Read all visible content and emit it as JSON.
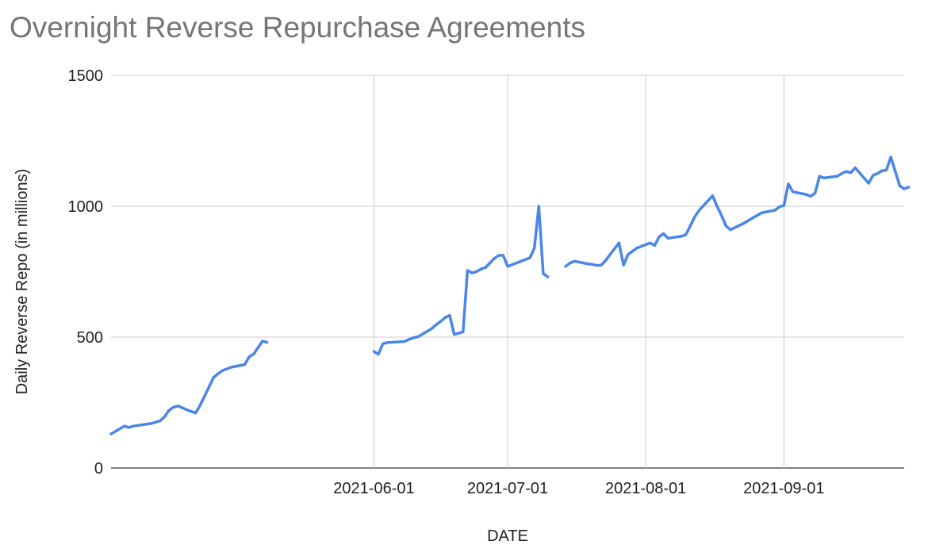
{
  "chart_data": {
    "type": "line",
    "title": "Overnight Reverse Repurchase Agreements",
    "xlabel": "DATE",
    "ylabel": "Daily Reverse Repo (in millions)",
    "ylim": [
      0,
      1500
    ],
    "y_ticks": [
      0,
      500,
      1000,
      1500
    ],
    "x_ticks": [
      "2021-06-01",
      "2021-07-01",
      "2021-08-01",
      "2021-09-01"
    ],
    "xlim": [
      "2021-04-03",
      "2021-09-28"
    ],
    "grid": true,
    "line_color": "#4a86e8",
    "series": [
      {
        "segments": [
          [
            [
              "2021-04-03",
              130
            ],
            [
              "2021-04-05",
              150
            ],
            [
              "2021-04-06",
              160
            ],
            [
              "2021-04-07",
              155
            ],
            [
              "2021-04-08",
              160
            ],
            [
              "2021-04-12",
              170
            ],
            [
              "2021-04-13",
              175
            ],
            [
              "2021-04-14",
              180
            ],
            [
              "2021-04-15",
              195
            ],
            [
              "2021-04-16",
              220
            ],
            [
              "2021-04-17",
              232
            ],
            [
              "2021-04-18",
              237
            ],
            [
              "2021-04-19",
              230
            ],
            [
              "2021-04-20",
              222
            ],
            [
              "2021-04-22",
              210
            ],
            [
              "2021-04-23",
              240
            ],
            [
              "2021-04-26",
              345
            ],
            [
              "2021-04-27",
              360
            ],
            [
              "2021-04-28",
              372
            ],
            [
              "2021-04-30",
              385
            ],
            [
              "2021-05-03",
              395
            ],
            [
              "2021-05-04",
              425
            ],
            [
              "2021-05-05",
              435
            ],
            [
              "2021-05-06",
              460
            ],
            [
              "2021-05-07",
              485
            ],
            [
              "2021-05-08",
              480
            ]
          ],
          [
            [
              "2021-06-01",
              445
            ],
            [
              "2021-06-02",
              435
            ],
            [
              "2021-06-03",
              475
            ],
            [
              "2021-06-04",
              479
            ],
            [
              "2021-06-07",
              482
            ],
            [
              "2021-06-08",
              484
            ],
            [
              "2021-06-09",
              492
            ],
            [
              "2021-06-10",
              498
            ],
            [
              "2021-06-11",
              502
            ],
            [
              "2021-06-14",
              533
            ],
            [
              "2021-06-15",
              548
            ],
            [
              "2021-06-16",
              560
            ],
            [
              "2021-06-17",
              575
            ],
            [
              "2021-06-18",
              583
            ],
            [
              "2021-06-19",
              510
            ],
            [
              "2021-06-21",
              520
            ],
            [
              "2021-06-22",
              755
            ],
            [
              "2021-06-23",
              745
            ],
            [
              "2021-06-24",
              750
            ],
            [
              "2021-06-25",
              760
            ],
            [
              "2021-06-26",
              765
            ],
            [
              "2021-06-28",
              800
            ],
            [
              "2021-06-29",
              812
            ],
            [
              "2021-06-30",
              812
            ],
            [
              "2021-07-01",
              770
            ],
            [
              "2021-07-06",
              803
            ],
            [
              "2021-07-07",
              840
            ],
            [
              "2021-07-08",
              1000
            ],
            [
              "2021-07-09",
              742
            ],
            [
              "2021-07-10",
              730
            ]
          ],
          [
            [
              "2021-07-14",
              770
            ],
            [
              "2021-07-15",
              783
            ],
            [
              "2021-07-16",
              790
            ],
            [
              "2021-07-19",
              780
            ],
            [
              "2021-07-20",
              778
            ],
            [
              "2021-07-21",
              774
            ],
            [
              "2021-07-22",
              775
            ],
            [
              "2021-07-23",
              793
            ],
            [
              "2021-07-26",
              860
            ],
            [
              "2021-07-27",
              775
            ],
            [
              "2021-07-28",
              815
            ],
            [
              "2021-07-29",
              828
            ],
            [
              "2021-07-30",
              840
            ],
            [
              "2021-08-02",
              860
            ],
            [
              "2021-08-03",
              850
            ],
            [
              "2021-08-04",
              883
            ],
            [
              "2021-08-05",
              895
            ],
            [
              "2021-08-06",
              878
            ],
            [
              "2021-08-09",
              885
            ],
            [
              "2021-08-10",
              891
            ],
            [
              "2021-08-12",
              960
            ],
            [
              "2021-08-13",
              985
            ],
            [
              "2021-08-16",
              1040
            ],
            [
              "2021-08-17",
              1000
            ],
            [
              "2021-08-18",
              965
            ],
            [
              "2021-08-19",
              925
            ],
            [
              "2021-08-20",
              910
            ],
            [
              "2021-08-23",
              935
            ],
            [
              "2021-08-24",
              945
            ],
            [
              "2021-08-25",
              955
            ],
            [
              "2021-08-26",
              965
            ],
            [
              "2021-08-27",
              975
            ],
            [
              "2021-08-30",
              985
            ],
            [
              "2021-08-31",
              998
            ],
            [
              "2021-09-01",
              1003
            ],
            [
              "2021-09-02",
              1085
            ],
            [
              "2021-09-03",
              1055
            ],
            [
              "2021-09-06",
              1045
            ],
            [
              "2021-09-07",
              1038
            ],
            [
              "2021-09-08",
              1050
            ],
            [
              "2021-09-09",
              1115
            ],
            [
              "2021-09-10",
              1108
            ],
            [
              "2021-09-13",
              1115
            ],
            [
              "2021-09-14",
              1125
            ],
            [
              "2021-09-15",
              1133
            ],
            [
              "2021-09-16",
              1128
            ],
            [
              "2021-09-17",
              1147
            ],
            [
              "2021-09-20",
              1088
            ],
            [
              "2021-09-21",
              1118
            ],
            [
              "2021-09-22",
              1125
            ],
            [
              "2021-09-23",
              1135
            ],
            [
              "2021-09-24",
              1138
            ],
            [
              "2021-09-25",
              1188
            ],
            [
              "2021-09-27",
              1078
            ],
            [
              "2021-09-28",
              1066
            ],
            [
              "2021-09-29",
              1073
            ]
          ]
        ]
      }
    ]
  }
}
